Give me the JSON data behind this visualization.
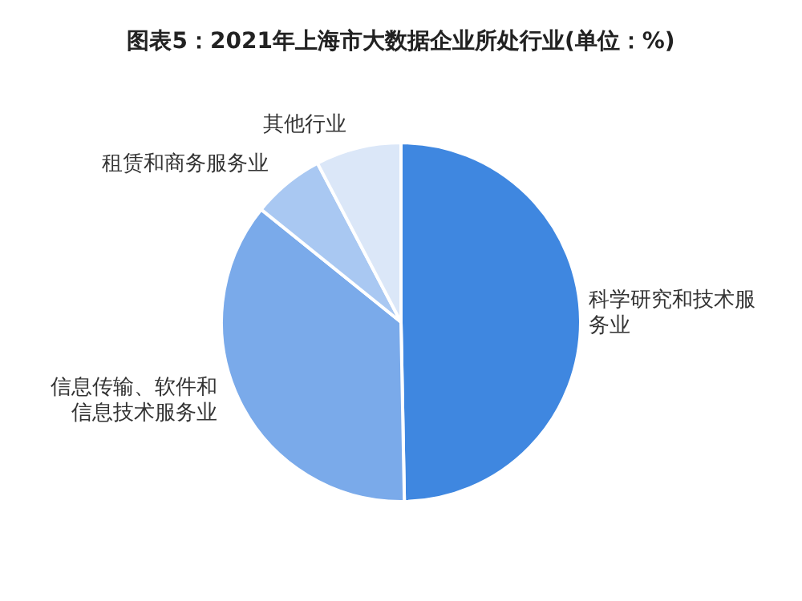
{
  "chart_data": {
    "type": "pie",
    "title": "图表5：2021年上海市大数据企业所处行业(单位：%)",
    "categories": [
      "科学研究和技术服务业",
      "信息传输、软件和信息技术服务业",
      "租赁和商务服务业",
      "其他行业"
    ],
    "values": [
      49.7,
      36.1,
      6.5,
      7.7
    ],
    "colors": [
      "#3f87e0",
      "#7aaaea",
      "#a9c8f2",
      "#dbe7f8"
    ]
  }
}
